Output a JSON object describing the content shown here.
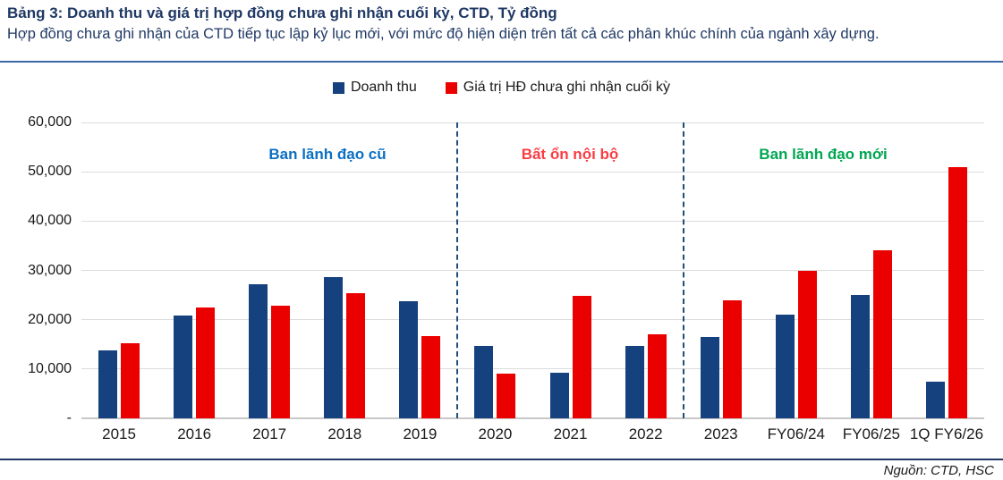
{
  "header": {
    "title": "Bảng 3: Doanh thu và giá trị hợp đồng chưa ghi nhận cuối kỳ, CTD, Tỷ đồng",
    "subtitle": "Hợp đồng chưa ghi nhận của CTD tiếp tục lập kỷ lục mới, với mức độ hiện diện trên tất cả các phân khúc chính của ngành xây dựng."
  },
  "legend": {
    "items": [
      {
        "label": "Doanh thu",
        "color": "#15417E"
      },
      {
        "label": "Giá trị HĐ chưa ghi nhận cuối kỳ",
        "color": "#EB0000"
      }
    ]
  },
  "annotations": [
    {
      "label": "Ban lãnh đạo cũ",
      "color": "#0B6FC3"
    },
    {
      "label": "Bất ổn nội bộ",
      "color": "#FA3C44"
    },
    {
      "label": "Ban lãnh đạo mới",
      "color": "#00A651"
    }
  ],
  "footer": {
    "source": "Nguồn: CTD, HSC"
  },
  "chart_data": {
    "type": "bar",
    "categories": [
      "2015",
      "2016",
      "2017",
      "2018",
      "2019",
      "2020",
      "2021",
      "2022",
      "2023",
      "FY06/24",
      "FY06/25",
      "1Q FY6/26"
    ],
    "series": [
      {
        "name": "Doanh thu",
        "color": "#15417E",
        "values": [
          13700,
          20800,
          27200,
          28600,
          23700,
          14700,
          9300,
          14700,
          16500,
          21000,
          25000,
          7500
        ]
      },
      {
        "name": "Giá trị HĐ chưa ghi nhận cuối kỳ",
        "color": "#EB0000",
        "values": [
          15200,
          22400,
          22800,
          25400,
          16700,
          9000,
          24900,
          17100,
          24000,
          30000,
          34000,
          51000
        ]
      }
    ],
    "ylim": [
      0,
      60000
    ],
    "ytick_step": 10000,
    "ytick_labels": [
      "-",
      "10,000",
      "20,000",
      "30,000",
      "40,000",
      "50,000",
      "60,000"
    ],
    "separators_after": [
      "2019",
      "2022"
    ],
    "sections": [
      "Ban lãnh đạo cũ",
      "Bất ổn nội bộ",
      "Ban lãnh đạo mới"
    ],
    "grid": "horizontal",
    "legend_position": "top"
  }
}
